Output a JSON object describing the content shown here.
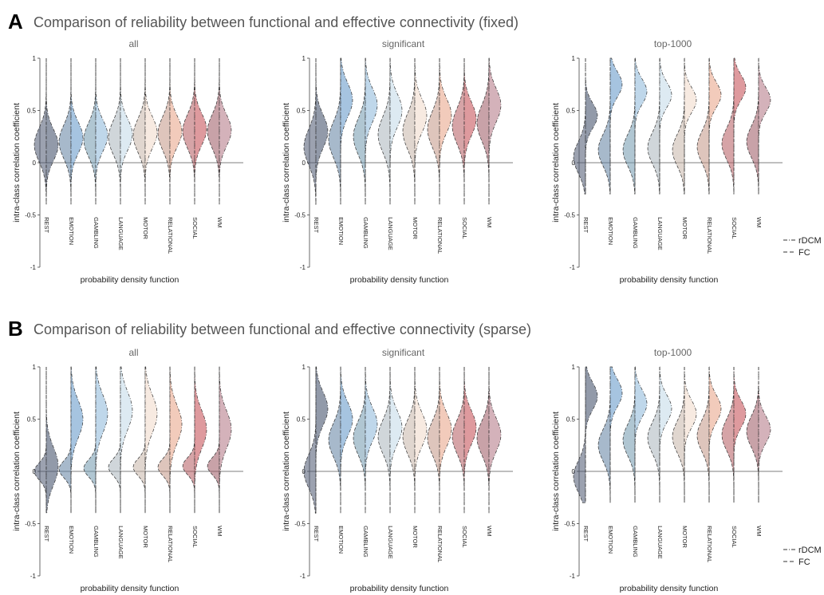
{
  "figure": {
    "rows": [
      {
        "letter": "A",
        "title": "Comparison of reliability between functional and effective connectivity (fixed)"
      },
      {
        "letter": "B",
        "title": "Comparison of reliability between functional and effective connectivity (sparse)"
      }
    ],
    "legend": {
      "rdcm": "rDCM",
      "fc": "FC"
    },
    "task_colors": [
      "#4a5670",
      "#5f7fa0",
      "#6f97ad",
      "#a9b4bc",
      "#c7b4a8",
      "#c39585",
      "#b55a5f",
      "#9a5560"
    ],
    "rdcm_colors": [
      "#4a5670",
      "#6b9ccc",
      "#94bcdc",
      "#c7dcea",
      "#f2dccd",
      "#eaa98e",
      "#c8575d",
      "#b77e8c"
    ]
  },
  "chart_data": [
    {
      "type": "violin",
      "row": 0,
      "panel_title": "all",
      "ylabel": "intra-class correlation coefficient",
      "xlabel": "probability density function",
      "ylim": [
        -1,
        1
      ],
      "yticks": [
        -1,
        -0.5,
        0,
        0.5,
        1
      ],
      "categories": [
        "REST",
        "EMOTION",
        "GAMBLING",
        "LANGUAGE",
        "MOTOR",
        "RELATIONAL",
        "SOCIAL",
        "WM"
      ],
      "series": [
        {
          "name": "rDCM",
          "modes": [
            0.17,
            0.24,
            0.26,
            0.27,
            0.29,
            0.3,
            0.32,
            0.31
          ],
          "spread": 0.15,
          "range": [
            -0.4,
            1.0
          ]
        },
        {
          "name": "FC",
          "modes": [
            0.17,
            0.2,
            0.22,
            0.24,
            0.26,
            0.28,
            0.3,
            0.3
          ],
          "spread": 0.16,
          "range": [
            -0.4,
            1.0
          ]
        }
      ]
    },
    {
      "type": "violin",
      "row": 0,
      "panel_title": "significant",
      "ylabel": "intra-class correlation coefficient",
      "xlabel": "probability density function",
      "ylim": [
        -1,
        1
      ],
      "yticks": [
        -1,
        -0.5,
        0,
        0.5,
        1
      ],
      "categories": [
        "REST",
        "EMOTION",
        "GAMBLING",
        "LANGUAGE",
        "MOTOR",
        "RELATIONAL",
        "SOCIAL",
        "WM"
      ],
      "series": [
        {
          "name": "rDCM",
          "modes": [
            0.3,
            0.6,
            0.55,
            0.5,
            0.45,
            0.45,
            0.42,
            0.55
          ],
          "spread": 0.16,
          "range": [
            -0.4,
            1.0
          ]
        },
        {
          "name": "FC",
          "modes": [
            0.15,
            0.22,
            0.25,
            0.27,
            0.3,
            0.32,
            0.35,
            0.38
          ],
          "spread": 0.17,
          "range": [
            -0.4,
            1.0
          ]
        }
      ]
    },
    {
      "type": "violin",
      "row": 0,
      "panel_title": "top-1000",
      "ylabel": "intra-class correlation coefficient",
      "xlabel": "probability density function",
      "ylim": [
        -1,
        1
      ],
      "yticks": [
        -1,
        -0.5,
        0,
        0.5,
        1
      ],
      "categories": [
        "REST",
        "EMOTION",
        "GAMBLING",
        "LANGUAGE",
        "MOTOR",
        "RELATIONAL",
        "SOCIAL",
        "WM"
      ],
      "series": [
        {
          "name": "rDCM",
          "modes": [
            0.45,
            0.75,
            0.68,
            0.65,
            0.6,
            0.65,
            0.72,
            0.6
          ],
          "spread": 0.12,
          "range": [
            -0.3,
            1.0
          ]
        },
        {
          "name": "FC",
          "modes": [
            0.05,
            0.12,
            0.12,
            0.14,
            0.12,
            0.15,
            0.18,
            0.2
          ],
          "spread": 0.15,
          "range": [
            -0.3,
            1.0
          ]
        }
      ]
    },
    {
      "type": "violin",
      "row": 1,
      "panel_title": "all",
      "ylabel": "intra-class correlation coefficient",
      "xlabel": "probability density function",
      "ylim": [
        -1,
        1
      ],
      "yticks": [
        -1,
        -0.5,
        0,
        0.5,
        1
      ],
      "categories": [
        "REST",
        "EMOTION",
        "GAMBLING",
        "LANGUAGE",
        "MOTOR",
        "RELATIONAL",
        "SOCIAL",
        "WM"
      ],
      "series": [
        {
          "name": "rDCM",
          "modes": [
            0.05,
            0.5,
            0.55,
            0.58,
            0.55,
            0.45,
            0.4,
            0.4
          ],
          "spread": 0.18,
          "range": [
            -0.4,
            1.0
          ]
        },
        {
          "name": "FC",
          "modes": [
            0.0,
            0.02,
            0.03,
            0.04,
            0.04,
            0.04,
            0.05,
            0.05
          ],
          "spread": 0.08,
          "range": [
            -0.4,
            1.0
          ]
        }
      ]
    },
    {
      "type": "violin",
      "row": 1,
      "panel_title": "significant",
      "ylabel": "intra-class correlation coefficient",
      "xlabel": "probability density function",
      "ylim": [
        -1,
        1
      ],
      "yticks": [
        -1,
        -0.5,
        0,
        0.5,
        1
      ],
      "categories": [
        "REST",
        "EMOTION",
        "GAMBLING",
        "LANGUAGE",
        "MOTOR",
        "RELATIONAL",
        "SOCIAL",
        "WM"
      ],
      "series": [
        {
          "name": "rDCM",
          "modes": [
            0.6,
            0.5,
            0.45,
            0.42,
            0.4,
            0.4,
            0.42,
            0.35
          ],
          "spread": 0.16,
          "range": [
            -0.4,
            1.0
          ]
        },
        {
          "name": "FC",
          "modes": [
            0.0,
            0.3,
            0.32,
            0.33,
            0.33,
            0.32,
            0.33,
            0.32
          ],
          "spread": 0.16,
          "range": [
            -0.4,
            1.0
          ]
        }
      ]
    },
    {
      "type": "violin",
      "row": 1,
      "panel_title": "top-1000",
      "ylabel": "intra-class correlation coefficient",
      "xlabel": "probability density function",
      "ylim": [
        -1,
        1
      ],
      "yticks": [
        -1,
        -0.5,
        0,
        0.5,
        1
      ],
      "categories": [
        "REST",
        "EMOTION",
        "GAMBLING",
        "LANGUAGE",
        "MOTOR",
        "RELATIONAL",
        "SOCIAL",
        "WM"
      ],
      "series": [
        {
          "name": "rDCM",
          "modes": [
            0.72,
            0.75,
            0.65,
            0.6,
            0.55,
            0.6,
            0.55,
            0.4
          ],
          "spread": 0.13,
          "range": [
            -0.3,
            1.0
          ]
        },
        {
          "name": "FC",
          "modes": [
            -0.05,
            0.25,
            0.3,
            0.32,
            0.33,
            0.34,
            0.35,
            0.38
          ],
          "spread": 0.15,
          "range": [
            -0.3,
            1.0
          ]
        }
      ]
    }
  ]
}
